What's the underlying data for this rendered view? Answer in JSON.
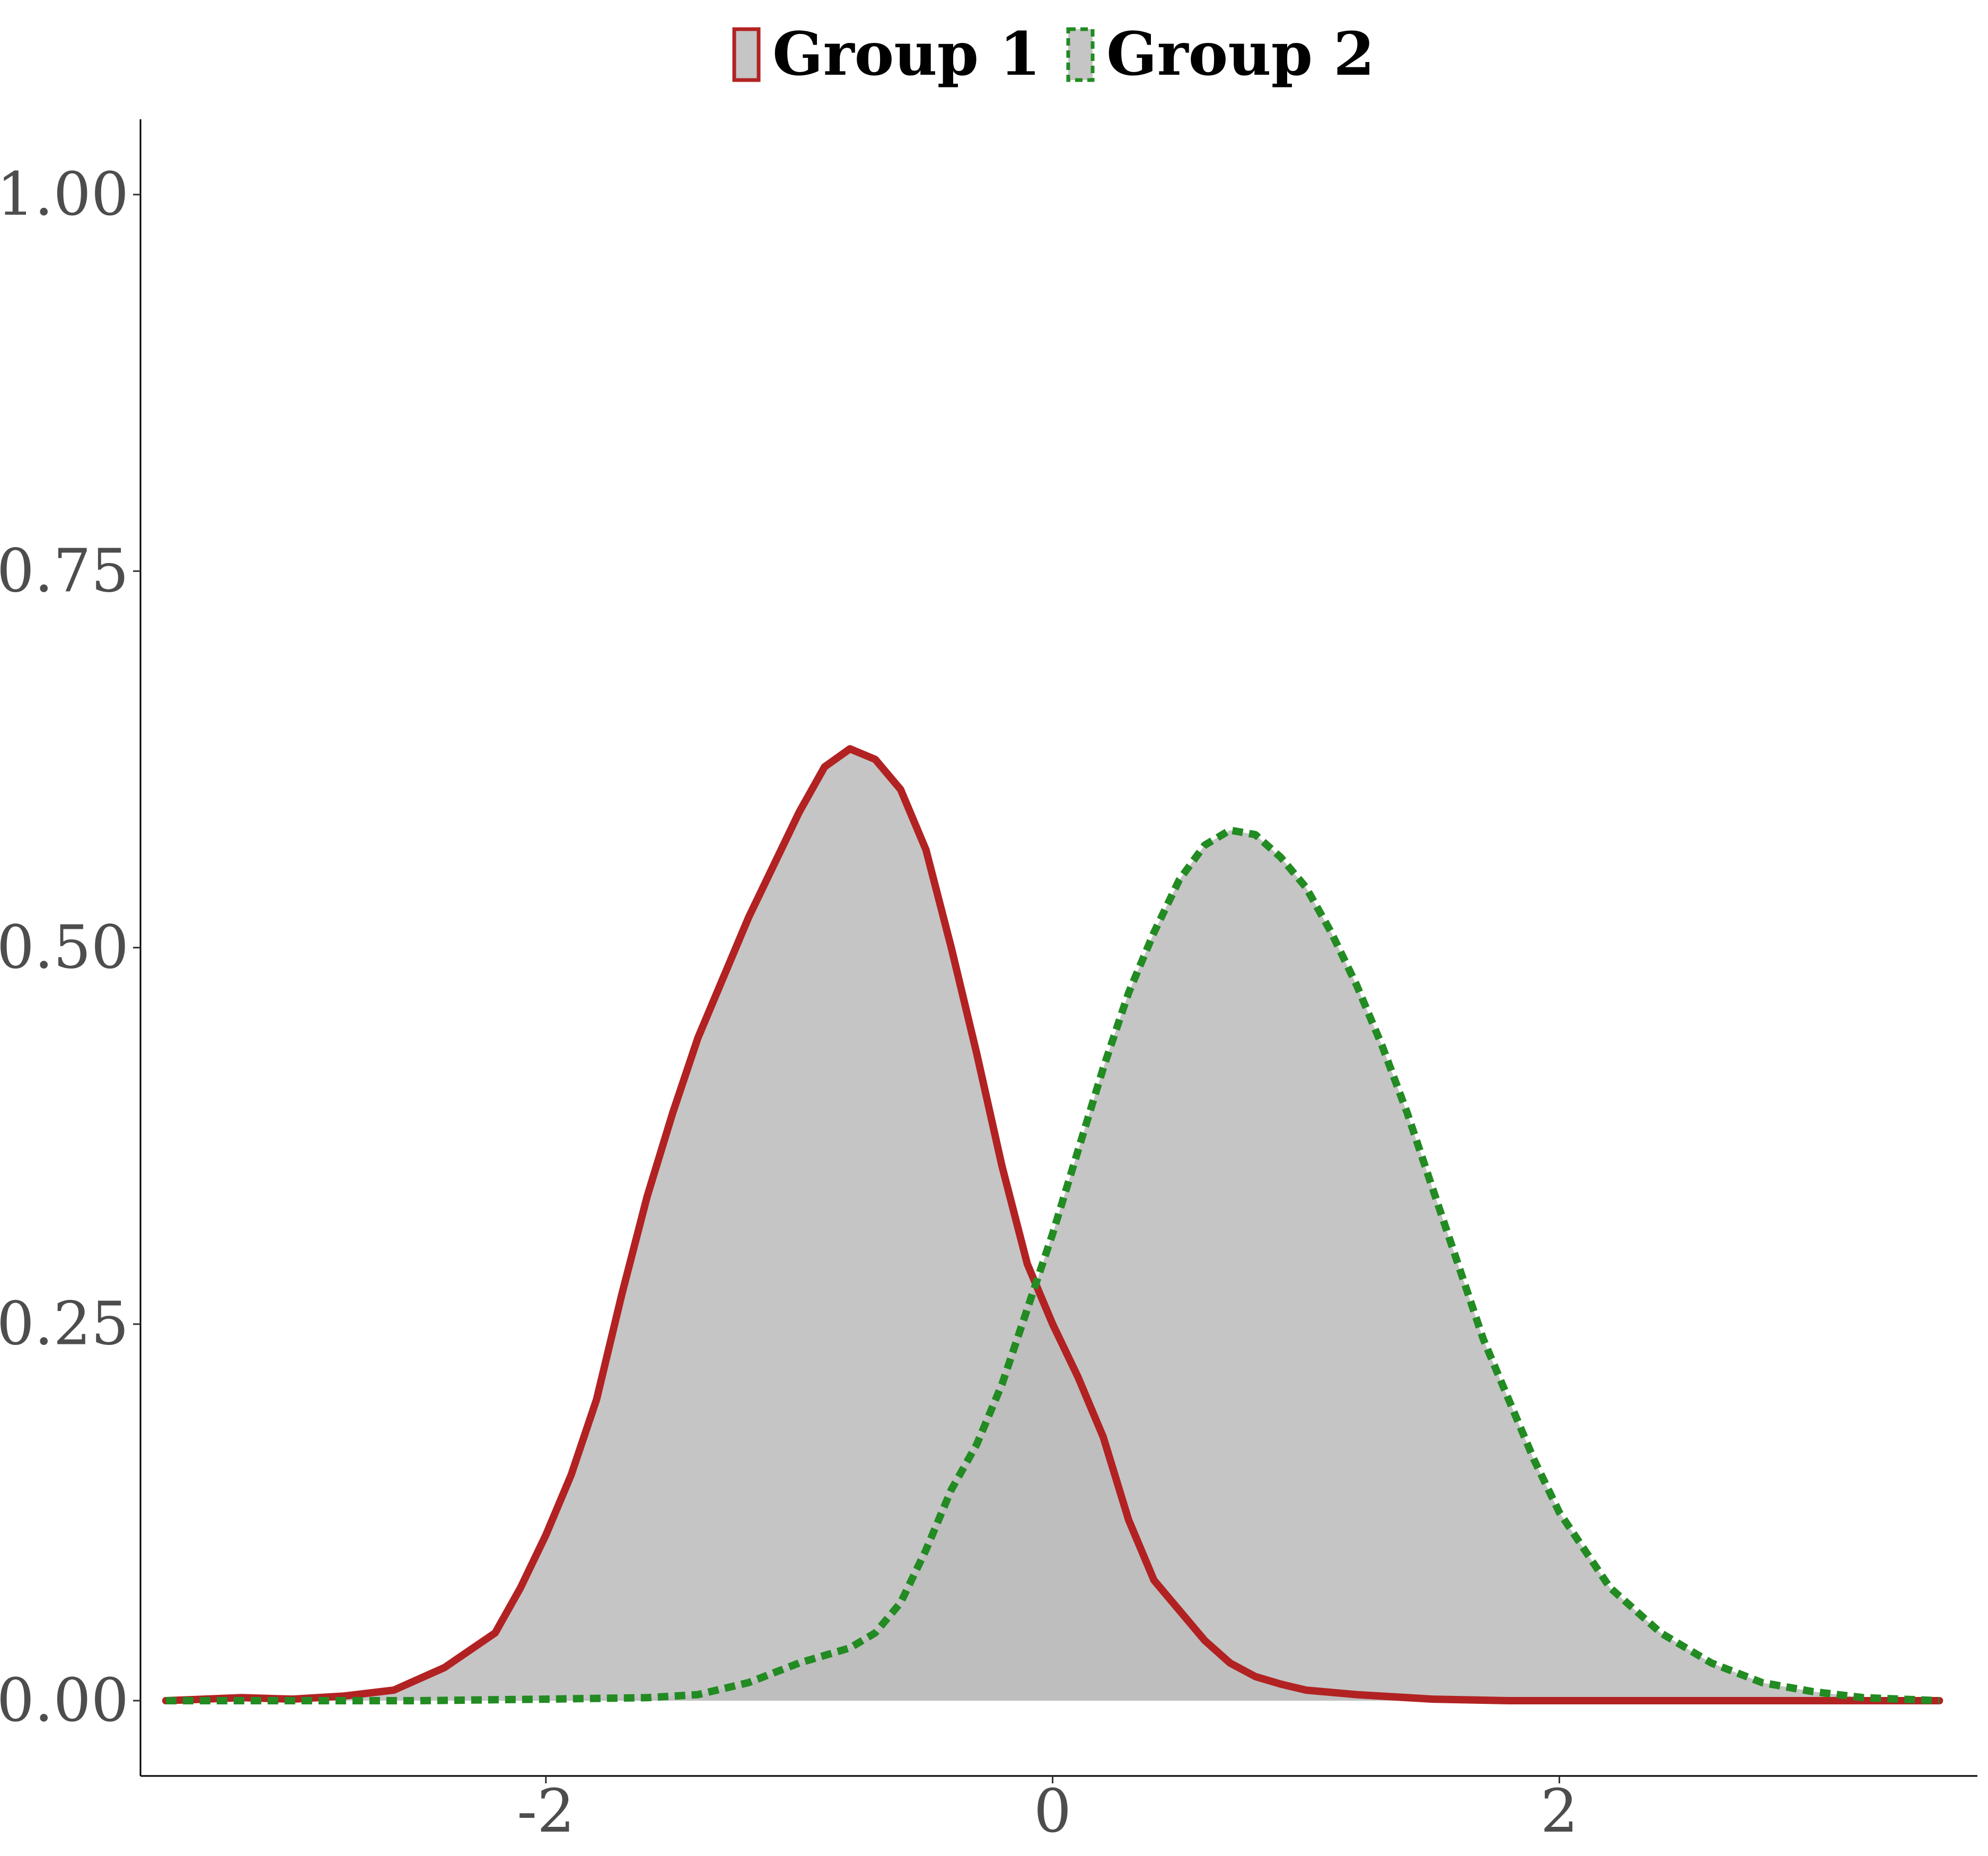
{
  "chart_data": {
    "type": "area",
    "title": "",
    "xlabel": "",
    "ylabel": "",
    "xlim": [
      -3.6,
      3.65
    ],
    "ylim": [
      -0.05,
      1.05
    ],
    "x_ticks": [
      -2,
      0,
      2
    ],
    "x_tick_labels": [
      "-2",
      "0",
      "2"
    ],
    "y_ticks": [
      0,
      0.25,
      0.5,
      0.75,
      1.0
    ],
    "y_tick_labels": [
      "0.00",
      "0.25",
      "0.50",
      "0.75",
      "1.00"
    ],
    "grid": false,
    "legend": {
      "position": "top",
      "entries": [
        "Group 1",
        "Group 2"
      ]
    },
    "fill_color": "#bdbdbd",
    "fill_opacity": 0.88,
    "overlap_color": "#a8a8a8",
    "series": [
      {
        "name": "Group 1",
        "color": "#b22222",
        "linestyle": "solid",
        "x": [
          -3.5,
          -3.2,
          -3.0,
          -2.8,
          -2.6,
          -2.4,
          -2.2,
          -2.1,
          -2.0,
          -1.9,
          -1.8,
          -1.7,
          -1.6,
          -1.5,
          -1.4,
          -1.3,
          -1.2,
          -1.1,
          -1.0,
          -0.9,
          -0.8,
          -0.7,
          -0.6,
          -0.5,
          -0.4,
          -0.3,
          -0.2,
          -0.1,
          0.0,
          0.1,
          0.2,
          0.3,
          0.4,
          0.5,
          0.6,
          0.7,
          0.8,
          0.9,
          1.0,
          1.2,
          1.5,
          1.8,
          2.2,
          2.6,
          3.0,
          3.5
        ],
        "y": [
          0.0,
          0.002,
          0.001,
          0.003,
          0.007,
          0.022,
          0.045,
          0.075,
          0.11,
          0.15,
          0.2,
          0.27,
          0.335,
          0.39,
          0.44,
          0.48,
          0.52,
          0.555,
          0.59,
          0.62,
          0.632,
          0.625,
          0.605,
          0.565,
          0.5,
          0.43,
          0.355,
          0.29,
          0.25,
          0.215,
          0.175,
          0.12,
          0.08,
          0.06,
          0.04,
          0.025,
          0.016,
          0.011,
          0.007,
          0.004,
          0.001,
          0.0,
          0.0,
          0.0,
          0.0,
          0.0
        ]
      },
      {
        "name": "Group 2",
        "color": "#228b22",
        "linestyle": "dashed",
        "x": [
          -3.5,
          -3.0,
          -2.5,
          -2.0,
          -1.6,
          -1.4,
          -1.2,
          -1.0,
          -0.8,
          -0.7,
          -0.6,
          -0.5,
          -0.4,
          -0.3,
          -0.2,
          -0.1,
          0.0,
          0.1,
          0.2,
          0.3,
          0.4,
          0.5,
          0.6,
          0.7,
          0.8,
          0.9,
          1.0,
          1.1,
          1.2,
          1.3,
          1.4,
          1.5,
          1.6,
          1.7,
          1.8,
          1.9,
          2.0,
          2.2,
          2.4,
          2.6,
          2.8,
          3.0,
          3.2,
          3.5
        ],
        "y": [
          0.0,
          0.0,
          0.0,
          0.001,
          0.002,
          0.004,
          0.012,
          0.025,
          0.035,
          0.045,
          0.065,
          0.1,
          0.14,
          0.17,
          0.21,
          0.26,
          0.31,
          0.365,
          0.42,
          0.47,
          0.51,
          0.545,
          0.568,
          0.578,
          0.575,
          0.56,
          0.54,
          0.51,
          0.475,
          0.435,
          0.39,
          0.34,
          0.29,
          0.24,
          0.2,
          0.16,
          0.125,
          0.075,
          0.045,
          0.025,
          0.012,
          0.006,
          0.002,
          0.0
        ]
      }
    ]
  }
}
